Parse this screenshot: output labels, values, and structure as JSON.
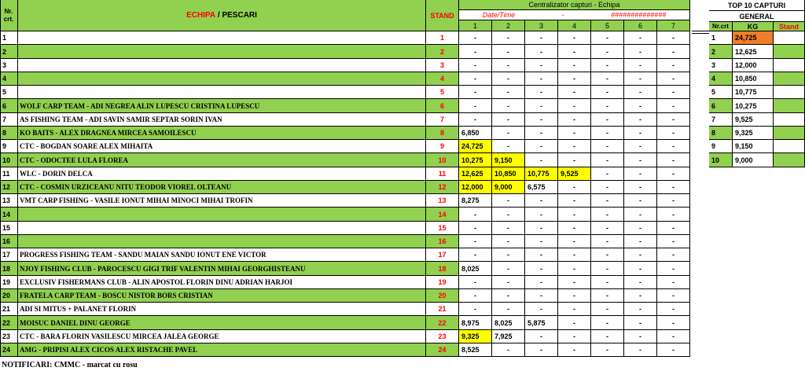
{
  "header": {
    "nr_crt": "Nr.\ncrt.",
    "echipa": "ECHIPA",
    "separator": " / ",
    "pescari": "PESCARI",
    "stand": "STAND",
    "centralizator": "Centralizator capturi - Echipa",
    "date_label": "Date/Time",
    "dash": "-",
    "hashes": "##############",
    "day_cols": [
      "1",
      "2",
      "3",
      "4",
      "5",
      "6",
      "7"
    ]
  },
  "top10": {
    "title_line1": "TOP 10 CAPTURI",
    "title_line2": "GENERAL",
    "col_nr": "Nr.crt",
    "col_kg": "KG",
    "col_stand": "Stand",
    "rows": [
      {
        "nr": "1",
        "kg": "24,725",
        "stand": ""
      },
      {
        "nr": "2",
        "kg": "12,625",
        "stand": ""
      },
      {
        "nr": "3",
        "kg": "12,000",
        "stand": ""
      },
      {
        "nr": "4",
        "kg": "10,850",
        "stand": ""
      },
      {
        "nr": "5",
        "kg": "10,775",
        "stand": ""
      },
      {
        "nr": "6",
        "kg": "10,275",
        "stand": ""
      },
      {
        "nr": "7",
        "kg": "9,525",
        "stand": ""
      },
      {
        "nr": "8",
        "kg": "9,325",
        "stand": ""
      },
      {
        "nr": "9",
        "kg": "9,150",
        "stand": ""
      },
      {
        "nr": "10",
        "kg": "9,000",
        "stand": ""
      }
    ]
  },
  "rows": [
    {
      "nr": "1",
      "team": "",
      "stand": "1",
      "c": [
        "-",
        "-",
        "-",
        "-",
        "-",
        "-",
        "-"
      ],
      "hl": []
    },
    {
      "nr": "2",
      "team": "",
      "stand": "2",
      "c": [
        "-",
        "-",
        "-",
        "-",
        "-",
        "-",
        "-"
      ],
      "hl": []
    },
    {
      "nr": "3",
      "team": "",
      "stand": "3",
      "c": [
        "-",
        "-",
        "-",
        "-",
        "-",
        "-",
        "-"
      ],
      "hl": []
    },
    {
      "nr": "4",
      "team": "",
      "stand": "4",
      "c": [
        "-",
        "-",
        "-",
        "-",
        "-",
        "-",
        "-"
      ],
      "hl": []
    },
    {
      "nr": "5",
      "team": "",
      "stand": "5",
      "c": [
        "-",
        "-",
        "-",
        "-",
        "-",
        "-",
        "-"
      ],
      "hl": []
    },
    {
      "nr": "6",
      "team": "WOLF CARP TEAM - ADI NEGREA ALIN LUPESCU CRISTINA LUPESCU",
      "stand": "6",
      "c": [
        "-",
        "-",
        "-",
        "-",
        "-",
        "-",
        "-"
      ],
      "hl": []
    },
    {
      "nr": "7",
      "team": "AS FISHING TEAM - ADI SAVIN SAMIR SEPTAR SORIN IVAN",
      "stand": "7",
      "c": [
        "-",
        "-",
        "-",
        "-",
        "-",
        "-",
        "-"
      ],
      "hl": []
    },
    {
      "nr": "8",
      "team": "KO BAITS - ALEX DRAGNEA MIRCEA SAMOILESCU",
      "stand": "8",
      "c": [
        "6,850",
        "-",
        "-",
        "-",
        "-",
        "-",
        "-"
      ],
      "hl": []
    },
    {
      "nr": "9",
      "team": "CTC - BOGDAN SOARE ALEX MIHAITA",
      "stand": "9",
      "c": [
        "24,725",
        "-",
        "-",
        "-",
        "-",
        "-",
        "-"
      ],
      "hl": [
        0
      ]
    },
    {
      "nr": "10",
      "team": "CTC - ODOCTEE LULA FLOREA",
      "stand": "10",
      "c": [
        "10,275",
        "9,150",
        "-",
        "-",
        "-",
        "-",
        "-"
      ],
      "hl": [
        0,
        1
      ]
    },
    {
      "nr": "11",
      "team": "WLC - DORIN DELCA",
      "stand": "11",
      "c": [
        "12,625",
        "10,850",
        "10,775",
        "9,525",
        "-",
        "-",
        "-"
      ],
      "hl": [
        0,
        1,
        2,
        3
      ]
    },
    {
      "nr": "12",
      "team": "CTC - COSMIN URZICEANU NITU TEODOR VIOREL OLTEANU",
      "stand": "12",
      "c": [
        "12,000",
        "9,000",
        "6,575",
        "-",
        "-",
        "-",
        "-"
      ],
      "hl": [
        0,
        1
      ]
    },
    {
      "nr": "13",
      "team": "VMT CARP FISHING - VASILE IONUT MIHAI MINOCI MIHAI TROFIN",
      "stand": "13",
      "c": [
        "8,275",
        "-",
        "-",
        "-",
        "-",
        "-",
        "-"
      ],
      "hl": []
    },
    {
      "nr": "14",
      "team": "",
      "stand": "14",
      "c": [
        "-",
        "-",
        "-",
        "-",
        "-",
        "-",
        "-"
      ],
      "hl": []
    },
    {
      "nr": "15",
      "team": "",
      "stand": "15",
      "c": [
        "-",
        "-",
        "-",
        "-",
        "-",
        "-",
        "-"
      ],
      "hl": []
    },
    {
      "nr": "16",
      "team": "",
      "stand": "16",
      "c": [
        "-",
        "-",
        "-",
        "-",
        "-",
        "-",
        "-"
      ],
      "hl": []
    },
    {
      "nr": "17",
      "team": "PROGRESS FISHING TEAM - SANDU MAIAN SANDU IONUT ENE VICTOR",
      "stand": "17",
      "c": [
        "-",
        "-",
        "-",
        "-",
        "-",
        "-",
        "-"
      ],
      "hl": []
    },
    {
      "nr": "18",
      "team": "NJOY FISHING CLUB - PAROCESCU GIGI TRIF VALENTIN MIHAI GEORGHISTEANU",
      "stand": "18",
      "c": [
        "8,025",
        "-",
        "-",
        "-",
        "-",
        "-",
        "-"
      ],
      "hl": []
    },
    {
      "nr": "19",
      "team": "EXCLUSIV FISHERMANS CLUB - ALIN APOSTOL FLORIN DINU ADRIAN HARJOI",
      "stand": "19",
      "c": [
        "-",
        "-",
        "-",
        "-",
        "-",
        "-",
        "-"
      ],
      "hl": []
    },
    {
      "nr": "20",
      "team": "FRATELA CARP TEAM - BOSCU NISTOR BORS CRISTIAN",
      "stand": "20",
      "c": [
        "-",
        "-",
        "-",
        "-",
        "-",
        "-",
        "-"
      ],
      "hl": []
    },
    {
      "nr": "21",
      "team": "ADI SI MITUS + PALANET FLORIN",
      "stand": "21",
      "c": [
        "-",
        "-",
        "-",
        "-",
        "-",
        "-",
        "-"
      ],
      "hl": []
    },
    {
      "nr": "22",
      "team": "MOISUC DANIEL DINU GEORGE",
      "stand": "22",
      "c": [
        "8,975",
        "8,025",
        "5,875",
        "-",
        "-",
        "-",
        "-"
      ],
      "hl": []
    },
    {
      "nr": "23",
      "team": "CTC - BARA FLORIN VASILESCU MIRCEA JALEA GEORGE",
      "stand": "23",
      "c": [
        "9,325",
        "7,925",
        "-",
        "-",
        "-",
        "-",
        "-"
      ],
      "hl": [
        0
      ]
    },
    {
      "nr": "24",
      "team": "AMG - PRIPISI ALEX CICOS ALEX RISTACHE PAVEL",
      "stand": "24",
      "c": [
        "8,525",
        "-",
        "-",
        "-",
        "-",
        "-",
        "-"
      ],
      "hl": []
    }
  ],
  "notes": "NOTIFICARI: CMMC -  marcat cu rosu",
  "colors": {
    "green": "#92d050",
    "yellow": "#ffff00",
    "orange": "#f07d2b",
    "red": "#ff0000"
  }
}
